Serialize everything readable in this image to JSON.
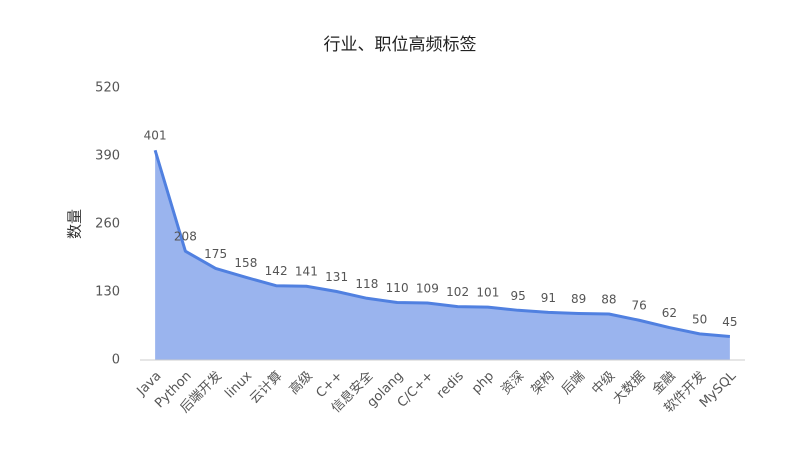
{
  "chart_data": {
    "type": "area",
    "title": "行业、职位高频标签",
    "y_label": "数量",
    "categories": [
      "Java",
      "Python",
      "后端开发",
      "linux",
      "云计算",
      "高级",
      "C++",
      "信息安全",
      "golang",
      "C/C++",
      "redis",
      "php",
      "资深",
      "架构",
      "后端",
      "中级",
      "大数据",
      "金融",
      "软件开发",
      "MySQL"
    ],
    "values": [
      401,
      208,
      175,
      158,
      142,
      141,
      131,
      118,
      110,
      109,
      102,
      101,
      95,
      91,
      89,
      88,
      76,
      62,
      50,
      45
    ],
    "color": "#5080e0",
    "fill": "#9ab4ee",
    "ylim": [
      0,
      520
    ],
    "yticks": [
      0,
      130,
      260,
      390,
      520
    ],
    "grid": false
  }
}
